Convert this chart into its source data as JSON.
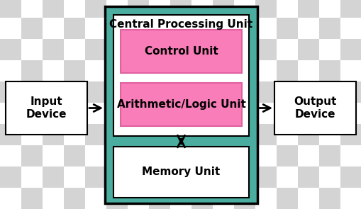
{
  "checker_light": "#ffffff",
  "checker_dark": "#d4d4d4",
  "checker_size": 30,
  "teal_color": "#4aada0",
  "teal_border": "#2a8a7d",
  "white_box": "#ffffff",
  "pink_color": "#f97db8",
  "pink_border": "#e060a0",
  "black": "#000000",
  "fig_w": 5.1,
  "fig_h": 2.95,
  "dpi": 100,
  "cpu_label": "Central Processing Unit",
  "control_label": "Control Unit",
  "alu_label": "Arithmetic/Logic Unit",
  "memory_label": "Memory Unit",
  "input_label": "Input\nDevice",
  "output_label": "Output\nDevice"
}
